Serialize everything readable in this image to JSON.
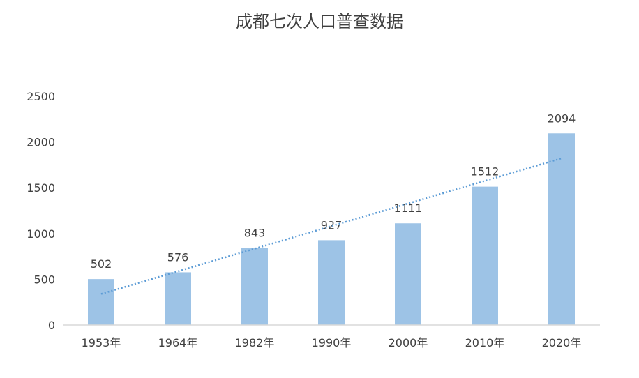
{
  "chart_data": {
    "type": "bar",
    "title": "成都七次人口普查数据",
    "categories": [
      "1953年",
      "1964年",
      "1982年",
      "1990年",
      "2000年",
      "2010年",
      "2020年"
    ],
    "values": [
      502,
      576,
      843,
      927,
      1111,
      1512,
      2094
    ],
    "ylim": [
      0,
      2500
    ],
    "yticks": [
      0,
      500,
      1000,
      1500,
      2000,
      2500
    ],
    "xlabel": "",
    "ylabel": "",
    "grid": false,
    "legend": "none",
    "trendline": "linear",
    "colors": {
      "bar": "#9dc3e6",
      "trendline": "#5b9bd5",
      "axis": "#d9d9d9",
      "text": "#404040"
    }
  }
}
